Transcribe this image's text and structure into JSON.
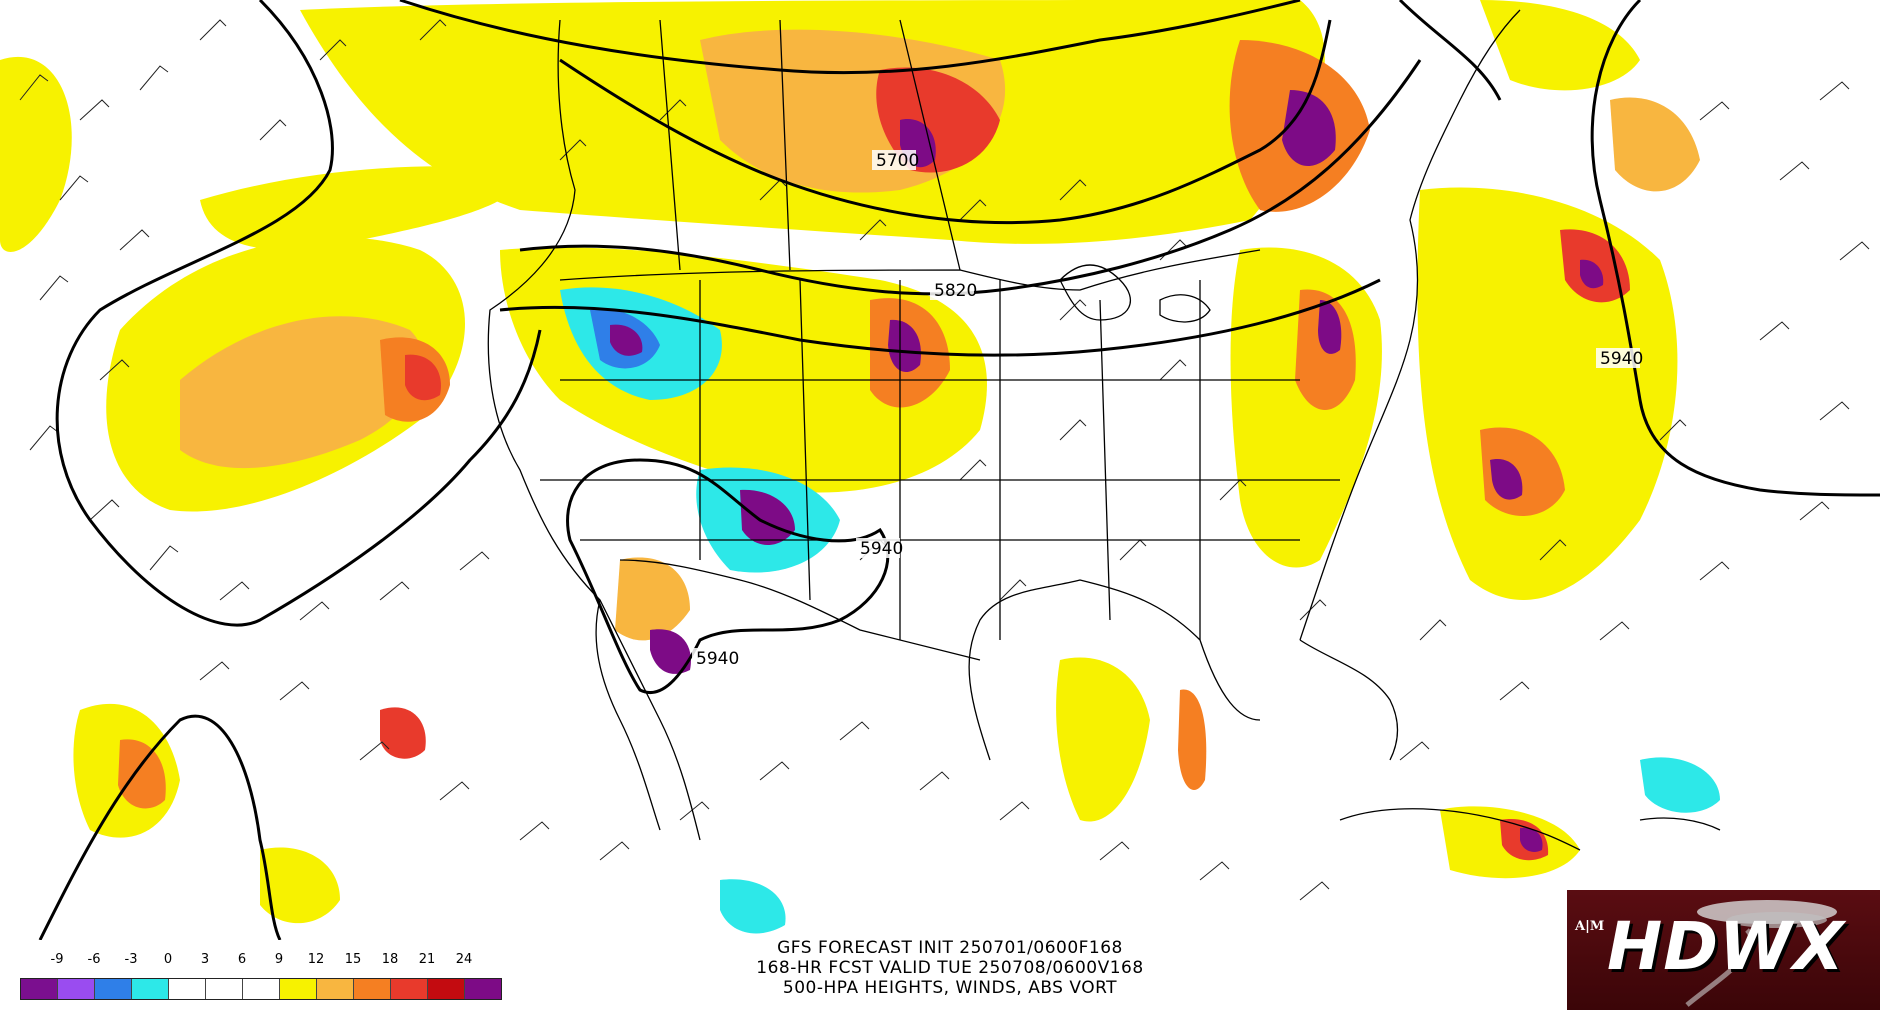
{
  "map": {
    "contour_labels": [
      "5700",
      "5820",
      "5940",
      "5940",
      "5940"
    ]
  },
  "caption": {
    "line1": "GFS FORECAST INIT 250701/0600F168",
    "line2": "168-HR FCST VALID TUE 250708/0600V168",
    "line3": "500-HPA HEIGHTS, WINDS, ABS VORT"
  },
  "colorbar": {
    "labels": [
      "-9",
      "-6",
      "-3",
      "0",
      "3",
      "6",
      "9",
      "12",
      "15",
      "18",
      "21",
      "24"
    ],
    "colors": [
      "#7b0f8f",
      "#9a4cf0",
      "#2f7fe8",
      "#2de8e8",
      "#ffffff",
      "#ffffff",
      "#ffffff",
      "#f7f200",
      "#f8b640",
      "#f57f22",
      "#e83a2c",
      "#c30b10",
      "#7d0b86"
    ]
  },
  "logo": {
    "text": "HDWX",
    "mark": "A|M"
  },
  "colors": {
    "yellow": "#f7f200",
    "tan": "#f8b640",
    "orange": "#f57f22",
    "red": "#c30b10",
    "purple": "#7d0b86",
    "cyan": "#2de8e8",
    "blue": "#2f7fe8"
  }
}
